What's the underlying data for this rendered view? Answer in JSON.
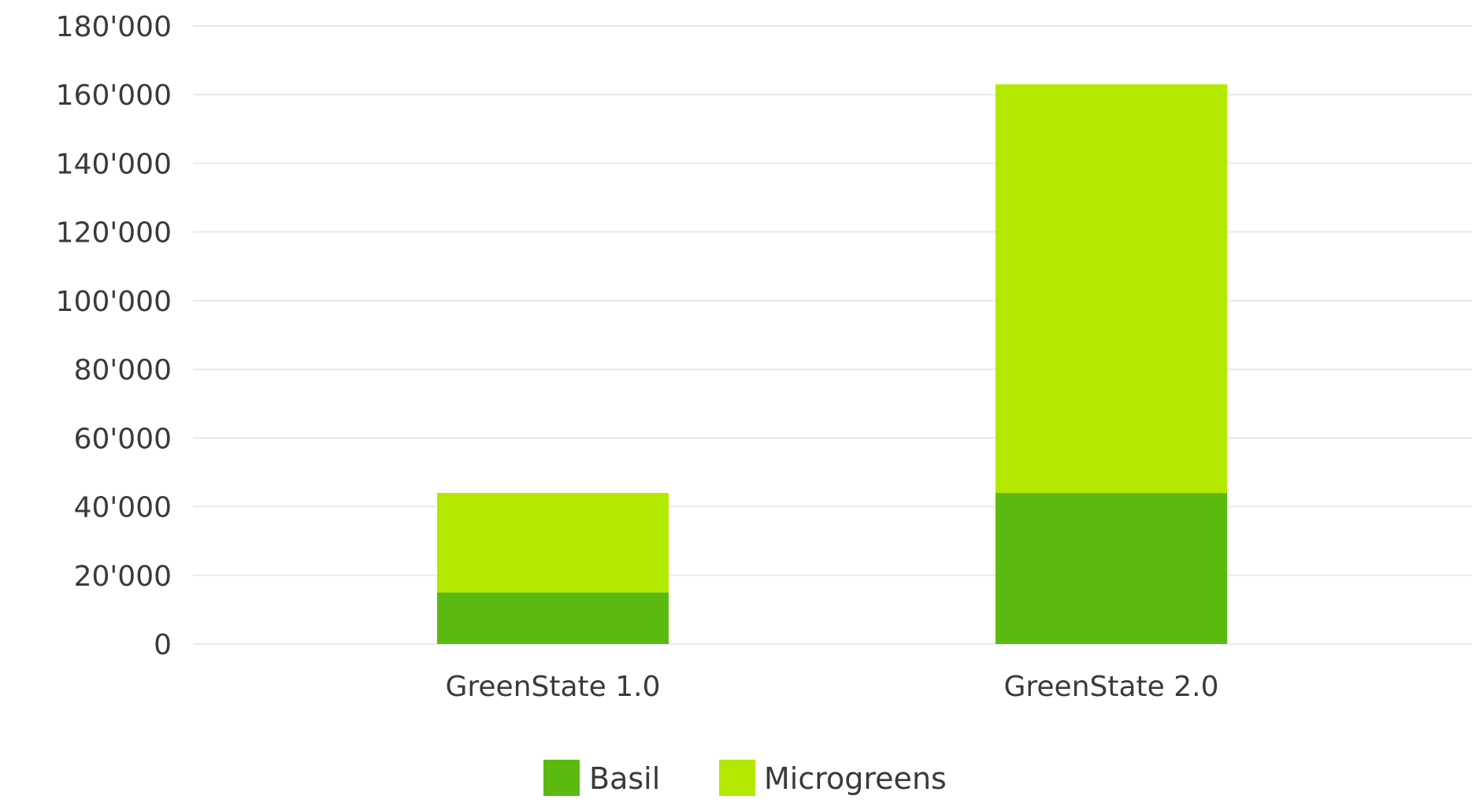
{
  "chart_data": {
    "type": "bar",
    "stacked": true,
    "title": "",
    "xlabel": "",
    "ylabel": "",
    "categories": [
      "GreenState 1.0",
      "GreenState 2.0"
    ],
    "series": [
      {
        "name": "Basil",
        "values": [
          15000,
          44000
        ],
        "color": "#5cb90f"
      },
      {
        "name": "Microgreens",
        "values": [
          29000,
          119000
        ],
        "color": "#b3e800"
      }
    ],
    "ylim": [
      0,
      180000
    ],
    "yticks": [
      0,
      20000,
      40000,
      60000,
      80000,
      100000,
      120000,
      140000,
      160000,
      180000
    ],
    "ytick_labels": [
      "0",
      "20'000",
      "40'000",
      "60'000",
      "80'000",
      "100'000",
      "120'000",
      "140'000",
      "160'000",
      "180'000"
    ],
    "grid": true,
    "legend": "bottom-center"
  }
}
